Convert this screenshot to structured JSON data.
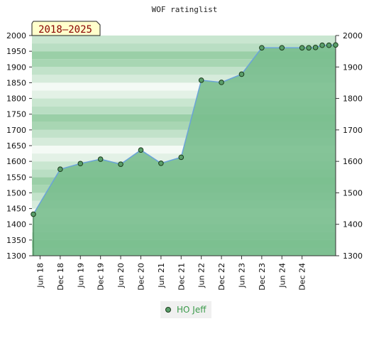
{
  "chart_data": {
    "type": "area",
    "title": "WOF ratinglist",
    "range_label": "2018–2025",
    "series": [
      {
        "name": "HO Jeff",
        "x": [
          "Apr 18",
          "Dec 18",
          "Jun 19",
          "Dec 19",
          "Jun 20",
          "Dec 20",
          "Jun 21",
          "Dec 21",
          "Jun 22",
          "Dec 22",
          "Jun 23",
          "Dec 23",
          "Jun 24",
          "Dec 24",
          "Feb 25",
          "Apr 25",
          "Jun 25",
          "Aug 25",
          "Oct 25"
        ],
        "values": [
          1432,
          1575,
          1593,
          1607,
          1591,
          1636,
          1594,
          1613,
          1858,
          1851,
          1877,
          1961,
          1961,
          1961,
          1961,
          1962,
          1969,
          1969,
          1970
        ]
      }
    ],
    "x_ticks": [
      "Jun 18",
      "Dec 18",
      "Jun 19",
      "Dec 19",
      "Jun 20",
      "Dec 20",
      "Jun 21",
      "Dec 21",
      "Jun 22",
      "Dec 22",
      "Jun 23",
      "Dec 23",
      "Jun 24",
      "Dec 24"
    ],
    "ylim": [
      1300,
      2000
    ],
    "y_ticks": [
      1300,
      1350,
      1400,
      1450,
      1500,
      1550,
      1600,
      1650,
      1700,
      1750,
      1800,
      1850,
      1900,
      1950,
      2000
    ],
    "y_ticks_right": [
      1300,
      1400,
      1500,
      1600,
      1700,
      1800,
      1900,
      2000
    ],
    "grid": "horizontal-bands",
    "legend_position": "bottom-center",
    "colors": {
      "area_fill": "#79be8e",
      "line": "#6aa3d8",
      "marker_fill": "#5a9e6a",
      "marker_edge": "#1a3a1a",
      "legend_text": "#3a9a4a",
      "range_box_fill": "#ffffcc",
      "range_text": "#8b0000"
    }
  }
}
